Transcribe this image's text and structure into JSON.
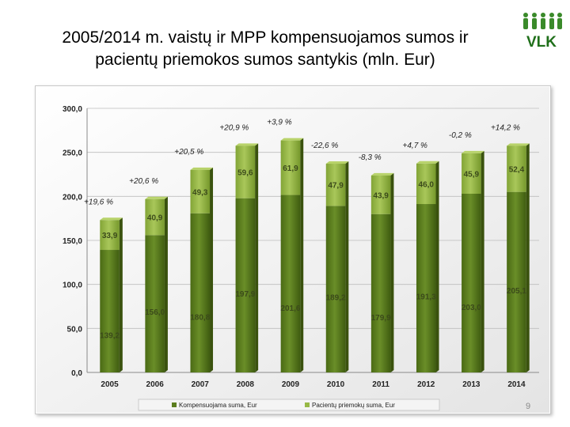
{
  "title_line1": "2005/2014 m. vaistų ir MPP kompensuojamos sumos ir",
  "title_line2": "pacientų priemokos sumos santykis (mln. Eur)",
  "logo_text": "VLK",
  "page_number": "9",
  "colors": {
    "compensated": "#5b7d1e",
    "patient": "#97b845",
    "logo_green": "#3a8a2a"
  },
  "chart_data": {
    "type": "bar",
    "stacked": true,
    "categories": [
      "2005",
      "2006",
      "2007",
      "2008",
      "2009",
      "2010",
      "2011",
      "2012",
      "2013",
      "2014"
    ],
    "series": [
      {
        "name": "Kompensuojama suma, Eur",
        "values": [
          139.2,
          156.0,
          180.8,
          197.9,
          201.6,
          189.2,
          179.9,
          191.3,
          203.0,
          205.1
        ],
        "labels": [
          "139,2",
          "156,0",
          "180,8",
          "197,9",
          "201,6",
          "189,2",
          "179,9",
          "191,3",
          "203,0",
          "205,1"
        ]
      },
      {
        "name": "Pacientų priemokų suma, Eur",
        "values": [
          33.9,
          40.9,
          49.3,
          59.6,
          61.9,
          47.9,
          43.9,
          46.0,
          45.9,
          52.4
        ],
        "labels": [
          "33,9",
          "40,9",
          "49,3",
          "59,6",
          "61,9",
          "47,9",
          "43,9",
          "46,0",
          "45,9",
          "52,4"
        ]
      }
    ],
    "percent_changes": [
      "+19,6 %",
      "+20,6 %",
      "+20,5 %",
      "+20,9 %",
      "+3,9 %",
      "-22,6 %",
      "-8,3 %",
      "+4,7 %",
      "-0,2 %",
      "+14,2 %"
    ],
    "y_ticks": [
      "0,0",
      "50,0",
      "100,0",
      "150,0",
      "200,0",
      "250,0",
      "300,0"
    ],
    "ylim": [
      0,
      300
    ],
    "grid": true,
    "legend_position": "bottom"
  }
}
